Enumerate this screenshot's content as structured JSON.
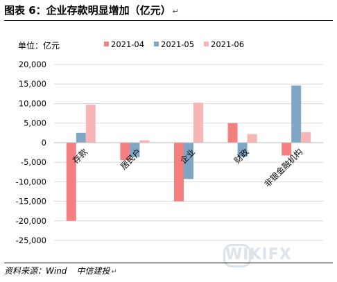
{
  "header": {
    "title": "图表 6：企业存款明显增加（亿元）",
    "return_mark": "↵"
  },
  "footer": {
    "source": "资料来源：Wind",
    "author": "中信建投",
    "return_mark": "↵"
  },
  "watermark": {
    "text": "WIKIFX"
  },
  "colors": {
    "2021-04": "#f47f7f",
    "2021-05": "#7fa6c4",
    "2021-06": "#f8b5b5",
    "grid": "#d9d9d9",
    "axis": "#bfbfbf"
  },
  "chart_data": {
    "type": "bar",
    "unit_label": "单位：亿元",
    "categories": [
      "存款",
      "居民户",
      "企业",
      "财政",
      "非银金融机构"
    ],
    "series": [
      {
        "name": "2021-04",
        "values": [
          -20000,
          -4500,
          -15000,
          5000,
          -3300
        ]
      },
      {
        "name": "2021-05",
        "values": [
          2500,
          -3700,
          -9300,
          -3600,
          14600
        ]
      },
      {
        "name": "2021-06",
        "values": [
          9700,
          600,
          10200,
          2200,
          2700
        ]
      }
    ],
    "ylim": [
      -25000,
      20000
    ],
    "yticks": [
      20000,
      15000,
      10000,
      5000,
      0,
      -5000,
      -10000,
      -15000,
      -20000,
      -25000
    ],
    "ytick_labels": [
      "20,000",
      "15,000",
      "10,000",
      "5,000",
      "0",
      "-5,000",
      "-10,000",
      "-15,000",
      "-20,000",
      "-25,000"
    ],
    "grid": "horizontal",
    "legend_position": "top"
  }
}
